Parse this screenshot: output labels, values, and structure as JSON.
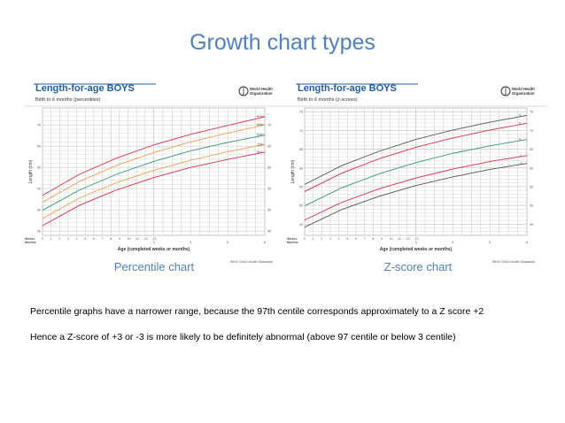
{
  "slide": {
    "title": "Growth chart types",
    "note_1": "Percentile graphs have a narrower range, because the 97th centile corresponds approximately to a Z score +2",
    "note_2": "Hence a Z-score of +3 or -3 is more likely to be definitely abnormal (above 97 centile or below 3 centile)"
  },
  "colors": {
    "title": "#4f81bd",
    "chart_title": "#1f5fa8",
    "chart_bg": "#ffffff",
    "grid": "#c8c8c8",
    "red": "#e02b4a",
    "orange": "#f0a04b",
    "green": "#2e9e6b",
    "black": "#555555"
  },
  "chart_data": [
    {
      "type": "line",
      "caption": "Percentile chart",
      "title": "Length-for-age BOYS",
      "subtitle": "Birth to 6 months (percentiles)",
      "xlabel": "Age (completed weeks or months)",
      "ylabel": "Length (cm)",
      "x_unit_labels": [
        "Weeks",
        "Months"
      ],
      "footer": "WHO Child Growth Standards",
      "logo_text": "World Health Organization",
      "week_ticks": [
        "0",
        "1",
        "2",
        "3",
        "4",
        "5",
        "6",
        "7",
        "8",
        "9",
        "10",
        "11",
        "12",
        "13"
      ],
      "month_ticks": [
        "3",
        "4",
        "5",
        "6"
      ],
      "x_months": [
        0,
        1,
        2,
        3,
        4,
        5,
        6
      ],
      "ylim": [
        44,
        74
      ],
      "series": [
        {
          "name": "97th",
          "color": "red",
          "values": [
            53.4,
            58.4,
            62.2,
            65.3,
            67.8,
            69.9,
            71.9
          ]
        },
        {
          "name": "85th",
          "color": "orange",
          "values": [
            51.8,
            56.7,
            60.5,
            63.5,
            66.0,
            68.1,
            70.0
          ]
        },
        {
          "name": "50th",
          "color": "green",
          "values": [
            49.9,
            54.7,
            58.4,
            61.4,
            63.9,
            65.9,
            67.6
          ]
        },
        {
          "name": "15th",
          "color": "orange",
          "values": [
            48.0,
            52.8,
            56.4,
            59.3,
            61.7,
            63.7,
            65.4
          ]
        },
        {
          "name": "3rd",
          "color": "red",
          "values": [
            46.3,
            51.1,
            54.7,
            57.6,
            60.0,
            61.9,
            63.6
          ]
        }
      ],
      "line_labels": [
        "97th",
        "85th",
        "50th",
        "15th",
        "3rd"
      ]
    },
    {
      "type": "line",
      "caption": "Z-score chart",
      "title": "Length-for-age BOYS",
      "subtitle": "Birth to 6 months (z-scores)",
      "xlabel": "Age (completed weeks or months)",
      "ylabel": "Length (cm)",
      "x_unit_labels": [
        "Weeks",
        "Months"
      ],
      "footer": "WHO Child Growth Standards",
      "logo_text": "World Health Organization",
      "week_ticks": [
        "0",
        "1",
        "2",
        "3",
        "4",
        "5",
        "6",
        "7",
        "8",
        "9",
        "10",
        "11",
        "12",
        "13"
      ],
      "month_ticks": [
        "3",
        "4",
        "5",
        "6"
      ],
      "x_months": [
        0,
        1,
        2,
        3,
        4,
        5,
        6
      ],
      "ylim": [
        42,
        76
      ],
      "series": [
        {
          "name": "3",
          "color": "black",
          "values": [
            55.6,
            60.6,
            64.4,
            67.6,
            70.1,
            72.2,
            74.0
          ]
        },
        {
          "name": "2",
          "color": "red",
          "values": [
            53.7,
            58.6,
            62.4,
            65.5,
            68.0,
            70.1,
            71.9
          ]
        },
        {
          "name": "0",
          "color": "green",
          "values": [
            49.9,
            54.7,
            58.4,
            61.4,
            63.9,
            65.9,
            67.6
          ]
        },
        {
          "name": "-2",
          "color": "red",
          "values": [
            46.1,
            50.8,
            54.4,
            57.3,
            59.7,
            61.7,
            63.3
          ]
        },
        {
          "name": "-3",
          "color": "black",
          "values": [
            44.2,
            48.9,
            52.4,
            55.3,
            57.6,
            59.6,
            61.2
          ]
        }
      ],
      "line_labels": [
        "3",
        "2",
        "0",
        "-2",
        "-3"
      ]
    }
  ]
}
